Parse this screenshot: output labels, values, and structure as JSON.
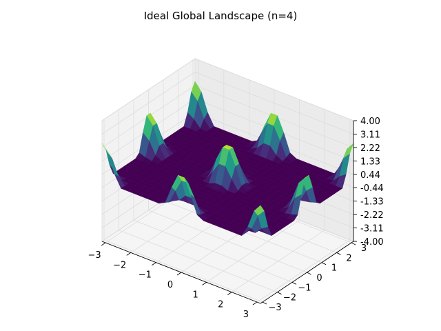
{
  "chart_data": {
    "type": "surface3d",
    "title": "Ideal Global Landscape (n=4)",
    "xlabel": "",
    "ylabel": "",
    "zlabel": "",
    "xlim": [
      -3.14,
      3.14
    ],
    "ylim": [
      -3.14,
      3.14
    ],
    "zlim": [
      -4.0,
      4.0
    ],
    "x_ticks": [
      "−3",
      "−2",
      "−1",
      "0",
      "1",
      "2",
      "3"
    ],
    "y_ticks": [
      "−3",
      "−2",
      "−1",
      "0",
      "1",
      "2",
      "3"
    ],
    "z_ticks": [
      "-4.00",
      "-3.11",
      "-2.22",
      "-1.33",
      "-0.44",
      "0.44",
      "1.33",
      "2.22",
      "3.11",
      "4.00"
    ],
    "x_tick_values": [
      -3,
      -2,
      -1,
      0,
      1,
      2,
      3
    ],
    "y_tick_values": [
      -3,
      -2,
      -1,
      0,
      1,
      2,
      3
    ],
    "z_tick_values": [
      -4.0,
      -3.11,
      -2.22,
      -1.33,
      -0.44,
      0.44,
      1.33,
      2.22,
      3.11,
      4.0
    ],
    "surface": {
      "grid": 25,
      "function": "clip(2*(cos(2x)+cos(2y)) - 1.5, 0)",
      "peaks": [
        {
          "x": 0,
          "y": 0,
          "z": 2.5
        },
        {
          "x": 3.14,
          "y": 3.14,
          "z": 2.5
        },
        {
          "x": -3.14,
          "y": 3.14,
          "z": 2.5
        },
        {
          "x": 3.14,
          "y": -3.14,
          "z": 2.5
        },
        {
          "x": -3.14,
          "y": -3.14,
          "z": 2.5
        },
        {
          "x": 0,
          "y": 3.14,
          "z": 2.5
        },
        {
          "x": 0,
          "y": -3.14,
          "z": 2.5
        },
        {
          "x": 3.14,
          "y": 0,
          "z": 2.5
        },
        {
          "x": -3.14,
          "y": 0,
          "z": 2.5
        }
      ]
    },
    "colormap": "viridis",
    "colors": {
      "pane_x": "#f2f2f2",
      "pane_y": "#ebebeb",
      "pane_floor": "#f5f5f5",
      "grid": "#dcdcdc",
      "axis": "#000000"
    },
    "grid": true
  }
}
